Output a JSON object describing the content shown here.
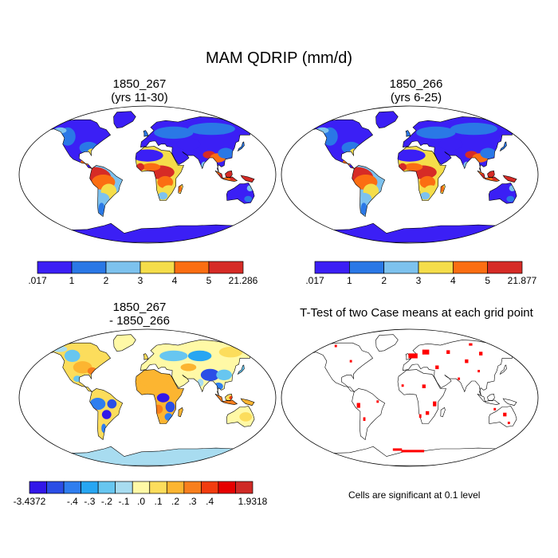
{
  "title": "MAM QDRIP (mm/d)",
  "panels": [
    {
      "id": "case1",
      "title": "1850_267\n(yrs 11-30)",
      "kind": "field"
    },
    {
      "id": "case2",
      "title": "1850_266\n(yrs 6-25)",
      "kind": "field"
    },
    {
      "id": "diff",
      "title": "1850_267\n- 1850_266",
      "kind": "difference"
    },
    {
      "id": "ttest",
      "title": "T-Test of two Case means at each grid point",
      "kind": "significance"
    }
  ],
  "colorbars": [
    {
      "id": "cb1",
      "labels": [
        ".017",
        "1",
        "2",
        "3",
        "4",
        "5",
        "21.286"
      ],
      "colors": [
        "#3b1ff5",
        "#2a78e6",
        "#7dc2ee",
        "#f5dd4a",
        "#fb6e12",
        "#d62b26"
      ]
    },
    {
      "id": "cb2",
      "labels": [
        ".017",
        "1",
        "2",
        "3",
        "4",
        "5",
        "21.877"
      ],
      "colors": [
        "#3b1ff5",
        "#2a78e6",
        "#7dc2ee",
        "#f5dd4a",
        "#fb6e12",
        "#d62b26"
      ]
    },
    {
      "id": "cb3",
      "labels": [
        "-3.4372",
        "-.4",
        "-.3",
        "-.2",
        "-.1",
        ".0",
        ".1",
        ".2",
        ".3",
        ".4",
        "1.9318"
      ],
      "colors": [
        "#3217e8",
        "#2b4ee6",
        "#2f7eef",
        "#27a6f2",
        "#67c6f0",
        "#a8dcf0",
        "#fff9a6",
        "#fcdd5c",
        "#fcb531",
        "#f87f1d",
        "#f23c0f",
        "#e60000",
        "#cf2a26"
      ]
    }
  ],
  "significance_note": "Cells are significant at 0.1 level",
  "colors": {
    "sig": "#ff0000",
    "coast": "#000000"
  }
}
